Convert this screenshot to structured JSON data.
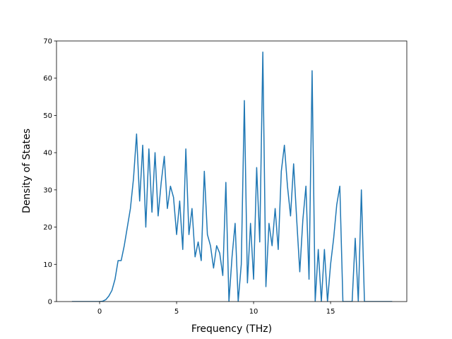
{
  "chart_data": {
    "type": "line",
    "x_label": "Frequency (THz)",
    "y_label": "Density of States",
    "x": [
      -1.8,
      -1.6,
      -1.4,
      -1.2,
      -1.0,
      -0.8,
      -0.6,
      -0.4,
      -0.2,
      0.0,
      0.2,
      0.4,
      0.6,
      0.8,
      1.0,
      1.2,
      1.4,
      1.6,
      1.8,
      2.0,
      2.2,
      2.4,
      2.6,
      2.8,
      3.0,
      3.2,
      3.4,
      3.6,
      3.8,
      4.0,
      4.2,
      4.4,
      4.6,
      4.8,
      5.0,
      5.2,
      5.4,
      5.6,
      5.8,
      6.0,
      6.2,
      6.4,
      6.6,
      6.8,
      7.0,
      7.2,
      7.4,
      7.6,
      7.8,
      8.0,
      8.2,
      8.4,
      8.6,
      8.8,
      9.0,
      9.2,
      9.4,
      9.6,
      9.8,
      10.0,
      10.2,
      10.4,
      10.6,
      10.8,
      11.0,
      11.2,
      11.4,
      11.6,
      11.8,
      12.0,
      12.2,
      12.4,
      12.6,
      12.8,
      13.0,
      13.2,
      13.4,
      13.6,
      13.8,
      14.0,
      14.2,
      14.4,
      14.6,
      14.8,
      15.0,
      15.2,
      15.4,
      15.6,
      15.8,
      16.0,
      16.2,
      16.4,
      16.6,
      16.8,
      17.0,
      17.2,
      17.4,
      17.6,
      17.8,
      18.0,
      18.2,
      18.4,
      18.6,
      18.8,
      19.0
    ],
    "series": [
      {
        "color": "#1f77b4",
        "values": [
          0,
          0,
          0,
          0,
          0,
          0,
          0,
          0,
          0,
          0,
          0.1,
          0.5,
          1.5,
          3,
          6,
          11,
          11,
          15,
          20,
          25,
          33,
          45,
          27,
          42,
          20,
          41,
          24,
          40,
          23,
          32,
          39,
          25,
          31,
          28,
          18,
          27,
          14,
          41,
          18,
          25,
          12,
          16,
          11,
          35,
          18,
          15,
          9,
          15,
          13,
          7,
          32,
          0,
          12,
          21,
          0,
          10,
          54,
          5,
          21,
          6,
          36,
          16,
          67,
          4,
          21,
          15,
          25,
          14,
          35,
          42,
          31,
          23,
          37,
          22,
          8,
          22,
          31,
          6,
          62,
          0,
          14,
          0,
          14,
          0,
          10,
          17,
          26,
          31,
          0,
          0,
          0,
          0,
          17,
          0,
          30,
          0,
          0,
          0,
          0,
          0,
          0,
          0,
          0,
          0,
          0
        ]
      }
    ],
    "xlim": [
      -2.8,
      19.95
    ],
    "ylim": [
      0,
      70
    ],
    "xticks": [
      0,
      5,
      10,
      15
    ],
    "yticks": [
      0,
      10,
      20,
      30,
      40,
      50,
      60,
      70
    ]
  }
}
